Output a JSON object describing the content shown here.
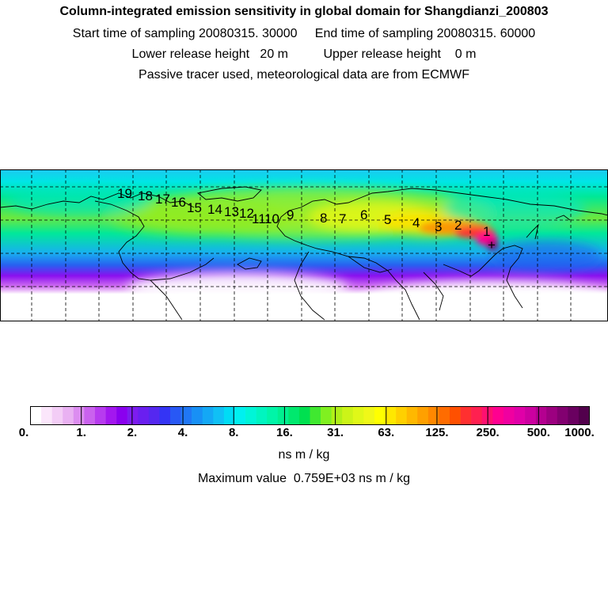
{
  "header": {
    "title": "Column-integrated emission sensitivity in global domain for Shangdianzi_200803",
    "sampling_line": "Start time of sampling 20080315. 30000     End time of sampling 20080315. 60000",
    "release_line": "Lower release height   20 m          Upper release height    0 m",
    "tracer_line": "Passive tracer used, meteorological data are from ECMWF"
  },
  "map": {
    "trajectory_labels": [
      "1",
      "2",
      "3",
      "4",
      "5",
      "6",
      "7",
      "8",
      "9",
      "10",
      "11",
      "12",
      "13",
      "14",
      "15",
      "16",
      "17",
      "18",
      "19"
    ],
    "source_marker": "+"
  },
  "colorbar": {
    "tick_labels": [
      "0.",
      "1.",
      "2.",
      "4.",
      "8.",
      "16.",
      "31.",
      "63.",
      "125.",
      "250.",
      "500.",
      "1000."
    ],
    "colors": [
      "#ffffff",
      "#fbe6fb",
      "#f3cdf6",
      "#e9b1f2",
      "#dc8df0",
      "#ca62ee",
      "#b73bef",
      "#a317ef",
      "#8a00ef",
      "#7d1cf0",
      "#6a1ff0",
      "#5528f0",
      "#3434f5",
      "#2858f5",
      "#2077f5",
      "#1890f5",
      "#14a8f5",
      "#10c0f5",
      "#00dcf5",
      "#00f0f0",
      "#00f5d8",
      "#00f5c0",
      "#00f5a8",
      "#00f090",
      "#00e86e",
      "#00e050",
      "#40e830",
      "#80f020",
      "#b0f018",
      "#ccf418",
      "#e0f818",
      "#f0f818",
      "#ffff00",
      "#ffe800",
      "#ffd000",
      "#ffb800",
      "#ffa000",
      "#ff8800",
      "#ff6c00",
      "#ff5000",
      "#ff3030",
      "#ff2050",
      "#ff1070",
      "#ff0090",
      "#f000a0",
      "#e000a8",
      "#cc00a0",
      "#b40090",
      "#9c0080",
      "#820070",
      "#6a0060",
      "#52004c"
    ],
    "unit": "ns m / kg"
  },
  "maximum": {
    "text": "Maximum value  0.759E+03 ns m / kg"
  }
}
